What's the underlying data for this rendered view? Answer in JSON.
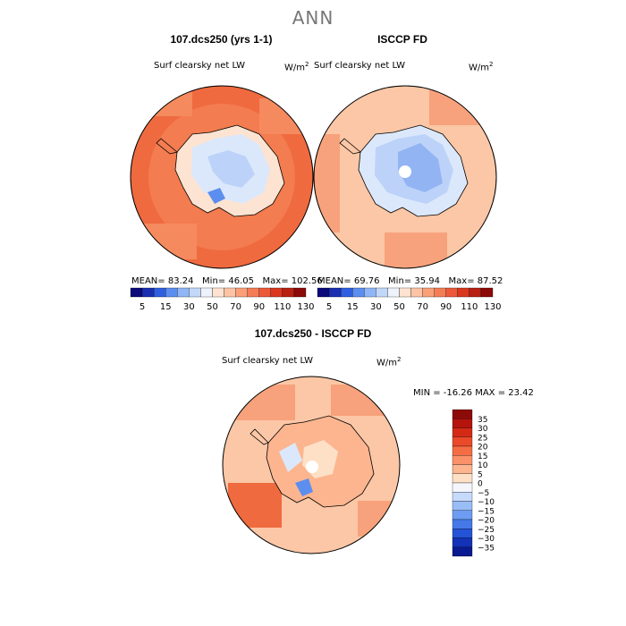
{
  "title": "ANN",
  "panel_a": {
    "title": "107.dcs250 (yrs 1-1)",
    "variable": "Surf clearsky net LW",
    "units_base": "W/m",
    "units_exp": "2",
    "stats": {
      "mean_label": "MEAN=",
      "mean": "83.24",
      "min_label": "Min=",
      "min": "46.05",
      "max_label": "Max=",
      "max": "102.56"
    }
  },
  "panel_b": {
    "title": "ISCCP FD",
    "variable": "Surf clearsky net LW",
    "units_base": "W/m",
    "units_exp": "2",
    "stats": {
      "mean_label": "MEAN=",
      "mean": "69.76",
      "min_label": "Min=",
      "min": "35.94",
      "max_label": "Max=",
      "max": "87.52"
    }
  },
  "top_colorbar": {
    "labels": [
      "5",
      "15",
      "30",
      "50",
      "70",
      "90",
      "110",
      "130"
    ],
    "colors": [
      "#0a0a7a",
      "#1a2fb0",
      "#2f5fe0",
      "#5c8ef0",
      "#8fb6f7",
      "#c2d8fb",
      "#eef3fb",
      "#fde3d0",
      "#fcc4a4",
      "#fa9f78",
      "#f47d56",
      "#ec5a3a",
      "#d9381f",
      "#b82112",
      "#8c0a08"
    ]
  },
  "diff_panel": {
    "title": "107.dcs250 - ISCCP FD",
    "variable": "Surf clearsky net LW",
    "units_base": "W/m",
    "units_exp": "2",
    "minmax": "MIN = -16.26 MAX =  23.42"
  },
  "diff_colorbar": {
    "labels": [
      "35",
      "30",
      "25",
      "20",
      "15",
      "10",
      "5",
      "0",
      "−5",
      "−10",
      "−15",
      "−20",
      "−25",
      "−30",
      "−35"
    ],
    "colors": [
      "#8c0a08",
      "#b5140d",
      "#d42a15",
      "#ea4a2a",
      "#f56d45",
      "#fa9169",
      "#fcb58f",
      "#fde0c6",
      "#f4f6fc",
      "#c6dafb",
      "#99bdf7",
      "#6d9cf2",
      "#4579e8",
      "#2453d6",
      "#1332b8",
      "#0a1a90"
    ]
  },
  "colors": {
    "orange_high": "#ef6a3f",
    "orange_mid": "#f7a27c",
    "peach": "#fbc7a6",
    "pale": "#fde3d1",
    "ice_light": "#dbe8fb",
    "ice_mid": "#bcd2f8",
    "ice_dark": "#92b4f3",
    "coast": "#000000",
    "pole_hole": "#ffffff"
  }
}
